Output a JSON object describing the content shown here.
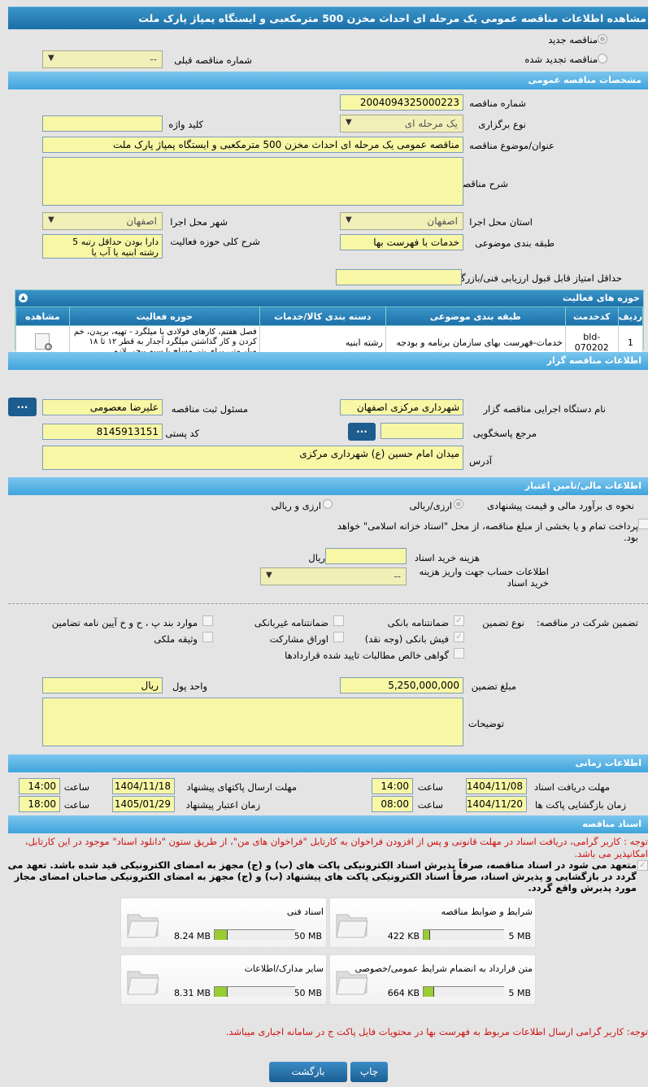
{
  "title": "مشاهده اطلاعات مناقصه عمومی یک مرحله ای احداث مخزن 500 مترمکعبی و ایستگاه پمپاژ پارک ملت",
  "top": {
    "new_tender": "مناقصه جدید",
    "renewed_tender": "مناقصه تجدید شده",
    "prev_number_label": "شماره مناقصه قبلی",
    "prev_number_value": "--"
  },
  "general": {
    "header": "مشخصات مناقصه عمومی",
    "number_label": "شماره مناقصه",
    "number_value": "2004094325000223",
    "type_label": "نوع برگزاری",
    "type_value": "یک مرحله ای",
    "keyword_label": "کلید واژه",
    "keyword_value": "",
    "subject_label": "عنوان/موضوع مناقصه",
    "subject_value": "مناقصه عمومی یک مرحله ای احداث مخزن 500 مترمکعبی و ایستگاه پمپاژ پارک ملت",
    "desc_label": "شرح مناقصه",
    "desc_value": "",
    "province_label": "استان محل اجرا",
    "province_value": "اصفهان",
    "city_label": "شهر محل اجرا",
    "city_value": "اصفهان",
    "category_label": "طبقه بندی موضوعی",
    "category_value": "خدمات با فهرست بها",
    "scope_label": "شرح کلی حوزه فعالیت",
    "scope_value": "دارا بودن حداقل رتبه 5 رشته ابنیه یا آب یا",
    "min_score_label": "حداقل امتیاز قابل قبول ارزیابی فنی/بازرگانی",
    "min_score_value": ""
  },
  "activities": {
    "header": "حوزه های فعالیت",
    "columns": [
      "ردیف",
      "کدخدمت",
      "طبقه بندی موضوعی",
      "دسته بندی کالا/خدمات",
      "حوزه فعالیت",
      "مشاهده"
    ],
    "rows": [
      [
        "1",
        "bld-070202",
        "خدمات-فهرست بهای سازمان برنامه و بودجه",
        "رشته ابنیه",
        "فصل هفتم، کارهای فولادی با میلگرد - تهیه، بریدن، خم کردن و کار گذاشتن میلگرد آجدار به قطر ۱۲ تا ۱۸ میلی‌متر، برای بتن مسلح با سیم پیچی لازم."
      ]
    ]
  },
  "organizer": {
    "header": "اطلاعات مناقصه گزار",
    "org_label": "نام دستگاه اجرایی مناقصه گزار",
    "org_value": "شهرداری مرکزی اصفهان",
    "resp_label": "مسئول ثبت مناقصه",
    "resp_value": "علیرضا معصومی",
    "ref_label": "مرجع پاسخگویی",
    "ref_value": "",
    "postal_label": "کد پستی",
    "postal_value": "8145913151",
    "address_label": "آدرس",
    "address_value": "میدان امام حسین (ع) شهرداری مرکزی",
    "more_button": "..."
  },
  "finance": {
    "header": "اطلاعات مالی/تامین اعتبار",
    "estimate_label": "نحوه ی برآورد مالی و قیمت پیشنهادی",
    "opt1": "ارزی/ریالی",
    "opt2": "ارزی و ریالی",
    "treasury_text": "پرداخت تمام و یا بخشی از مبلغ مناقصه، از محل \"اسناد خزانه اسلامی\" خواهد بود.",
    "doc_cost_label": "هزینه خرید اسناد",
    "doc_cost_value": "",
    "doc_cost_unit": "ریال",
    "account_label": "اطلاعات حساب جهت واریز هزینه خرید اسناد",
    "account_value": "--",
    "guarantee_label": "تضمین شرکت در مناقصه:",
    "guarantee_type_label": "نوع تضمین",
    "guarantees": [
      {
        "label": "ضمانتنامه بانکی",
        "checked": true
      },
      {
        "label": "ضمانتنامه غیربانکی",
        "checked": false
      },
      {
        "label": "موارد بند پ ، ح و خ آیین نامه تضامین",
        "checked": false
      },
      {
        "label": "فیش بانکی (وجه نقد)",
        "checked": true
      },
      {
        "label": "اوراق مشارکت",
        "checked": false
      },
      {
        "label": "وثیقه ملکی",
        "checked": false
      },
      {
        "label": "گواهی خالص مطالبات تایید شده قراردادها",
        "checked": false
      }
    ],
    "amount_label": "مبلغ تضمین",
    "amount_value": "5,250,000,000",
    "currency_label": "واحد پول",
    "currency_value": "ریال",
    "notes_label": "توضیحات",
    "notes_value": ""
  },
  "timing": {
    "header": "اطلاعات زمانی",
    "time_label": "ساعت",
    "receive_label": "مهلت دریافت اسناد",
    "receive_date": "1404/11/08",
    "receive_time": "14:00",
    "submit_label": "مهلت ارسال پاکتهای پیشنهاد",
    "submit_date": "1404/11/18",
    "submit_time": "14:00",
    "open_label": "زمان بازگشایی پاکت ها",
    "open_date": "1404/11/20",
    "open_time": "08:00",
    "valid_label": "زمان اعتبار پیشنهاد",
    "valid_date": "1405/01/29",
    "valid_time": "18:00"
  },
  "documents": {
    "header": "اسناد مناقصه",
    "note": "توجه : کاربر گرامی، دریافت اسناد در مهلت قانونی و پس از افزودن فراخوان به کارتابل \"فراخوان های من\"، از طریق ستون \"دانلود اسناد\" موجود در این کارتابل، امکانپذیر می باشد.",
    "commitment": "متعهد می شود در اسناد مناقصه، صرفاً پذیرش اسناد الکترونیکی پاکت های (ب) و (ج) مجهز به امضای الکترونیکی قید شده باشد. تعهد می گردد در بازگشایی و پذیرش اسناد، صرفاً اسناد الکترونیکی پاکت های پیشنهاد (ب) و (ج) مجهز به امضای الکترونیکی صاحبان امضای مجاز مورد پذیرش واقع گردد.",
    "files": [
      {
        "name": "شرایط و ضوابط مناقصه",
        "size": "422 KB",
        "max": "5 MB",
        "fraction": 0.08
      },
      {
        "name": "اسناد فنی",
        "size": "8.24 MB",
        "max": "50 MB",
        "fraction": 0.165
      },
      {
        "name": "متن قرارداد به انضمام شرایط عمومی/خصوصی",
        "size": "664 KB",
        "max": "5 MB",
        "fraction": 0.13
      },
      {
        "name": "سایر مدارک/اطلاعات",
        "size": "8.31 MB",
        "max": "50 MB",
        "fraction": 0.166
      }
    ],
    "note2": "توجه: کاربر گرامی ارسال اطلاعات مربوط به فهرست بها در محتویات فایل پاکت ج در سامانه اجباری میباشد."
  },
  "footer": {
    "print": "چاپ",
    "back": "بازگشت"
  },
  "colors": {
    "header": "#1c6fa8",
    "section": "#3fa4dc",
    "input": "#f8f7a6",
    "button": "#1d5c8e",
    "note": "#d01010",
    "progress": "#9acd32"
  }
}
